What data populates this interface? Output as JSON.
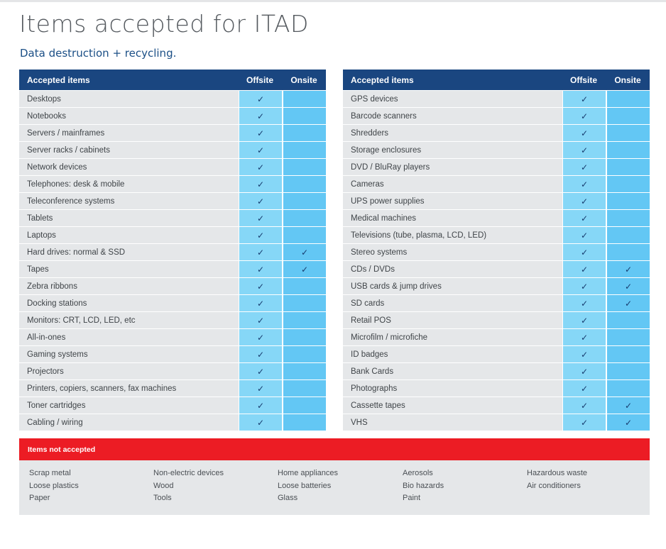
{
  "page": {
    "title": "Items accepted for ITAD",
    "subtitle": "Data destruction + recycling.",
    "colors": {
      "header_blue": "#1a4680",
      "offsite_cell": "#86d7f7",
      "onsite_cell": "#63c7f4",
      "not_accepted_red": "#ec1c24",
      "row_grey": "#e5e7e9"
    }
  },
  "left_table": {
    "headers": {
      "items": "Accepted items",
      "offsite": "Offsite",
      "onsite": "Onsite"
    },
    "rows": [
      {
        "name": "Desktops",
        "offsite": "✓",
        "onsite": ""
      },
      {
        "name": "Notebooks",
        "offsite": "✓",
        "onsite": ""
      },
      {
        "name": "Servers / mainframes",
        "offsite": "✓",
        "onsite": ""
      },
      {
        "name": "Server racks / cabinets",
        "offsite": "✓",
        "onsite": ""
      },
      {
        "name": "Network devices",
        "offsite": "✓",
        "onsite": ""
      },
      {
        "name": "Telephones: desk & mobile",
        "offsite": "✓",
        "onsite": ""
      },
      {
        "name": "Teleconference systems",
        "offsite": "✓",
        "onsite": ""
      },
      {
        "name": "Tablets",
        "offsite": "✓",
        "onsite": ""
      },
      {
        "name": "Laptops",
        "offsite": "✓",
        "onsite": ""
      },
      {
        "name": "Hard drives: normal & SSD",
        "offsite": "✓",
        "onsite": "✓"
      },
      {
        "name": "Tapes",
        "offsite": "✓",
        "onsite": "✓"
      },
      {
        "name": "Zebra ribbons",
        "offsite": "✓",
        "onsite": ""
      },
      {
        "name": "Docking stations",
        "offsite": "✓",
        "onsite": ""
      },
      {
        "name": "Monitors: CRT, LCD, LED, etc",
        "offsite": "✓",
        "onsite": ""
      },
      {
        "name": "All-in-ones",
        "offsite": "✓",
        "onsite": ""
      },
      {
        "name": "Gaming systems",
        "offsite": "✓",
        "onsite": ""
      },
      {
        "name": "Projectors",
        "offsite": "✓",
        "onsite": ""
      },
      {
        "name": "Printers, copiers, scanners, fax machines",
        "offsite": "✓",
        "onsite": ""
      },
      {
        "name": "Toner cartridges",
        "offsite": "✓",
        "onsite": ""
      },
      {
        "name": "Cabling / wiring",
        "offsite": "✓",
        "onsite": ""
      }
    ]
  },
  "right_table": {
    "headers": {
      "items": "Accepted items",
      "offsite": "Offsite",
      "onsite": "Onsite"
    },
    "rows": [
      {
        "name": "GPS devices",
        "offsite": "✓",
        "onsite": ""
      },
      {
        "name": "Barcode scanners",
        "offsite": "✓",
        "onsite": ""
      },
      {
        "name": "Shredders",
        "offsite": "✓",
        "onsite": ""
      },
      {
        "name": "Storage enclosures",
        "offsite": "✓",
        "onsite": ""
      },
      {
        "name": "DVD / BluRay players",
        "offsite": "✓",
        "onsite": ""
      },
      {
        "name": "Cameras",
        "offsite": "✓",
        "onsite": ""
      },
      {
        "name": "UPS power supplies",
        "offsite": "✓",
        "onsite": ""
      },
      {
        "name": "Medical machines",
        "offsite": "✓",
        "onsite": ""
      },
      {
        "name": "Televisions (tube, plasma, LCD, LED)",
        "offsite": "✓",
        "onsite": ""
      },
      {
        "name": "Stereo systems",
        "offsite": "✓",
        "onsite": ""
      },
      {
        "name": "CDs / DVDs",
        "offsite": "✓",
        "onsite": "✓"
      },
      {
        "name": "USB cards & jump drives",
        "offsite": "✓",
        "onsite": "✓"
      },
      {
        "name": "SD cards",
        "offsite": "✓",
        "onsite": "✓"
      },
      {
        "name": "Retail POS",
        "offsite": "✓",
        "onsite": ""
      },
      {
        "name": "Microfilm / microfiche",
        "offsite": "✓",
        "onsite": ""
      },
      {
        "name": "ID badges",
        "offsite": "✓",
        "onsite": ""
      },
      {
        "name": "Bank Cards",
        "offsite": "✓",
        "onsite": ""
      },
      {
        "name": "Photographs",
        "offsite": "✓",
        "onsite": ""
      },
      {
        "name": "Cassette tapes",
        "offsite": "✓",
        "onsite": "✓"
      },
      {
        "name": "VHS",
        "offsite": "✓",
        "onsite": "✓"
      }
    ]
  },
  "not_accepted": {
    "heading": "Items not accepted",
    "columns": [
      [
        "Scrap metal",
        "Loose plastics",
        "Paper"
      ],
      [
        "Non-electric devices",
        "Wood",
        "Tools"
      ],
      [
        "Home appliances",
        "Loose batteries",
        "Glass"
      ],
      [
        "Aerosols",
        "Bio hazards",
        "Paint"
      ],
      [
        "Hazardous waste",
        "Air conditioners"
      ]
    ]
  }
}
